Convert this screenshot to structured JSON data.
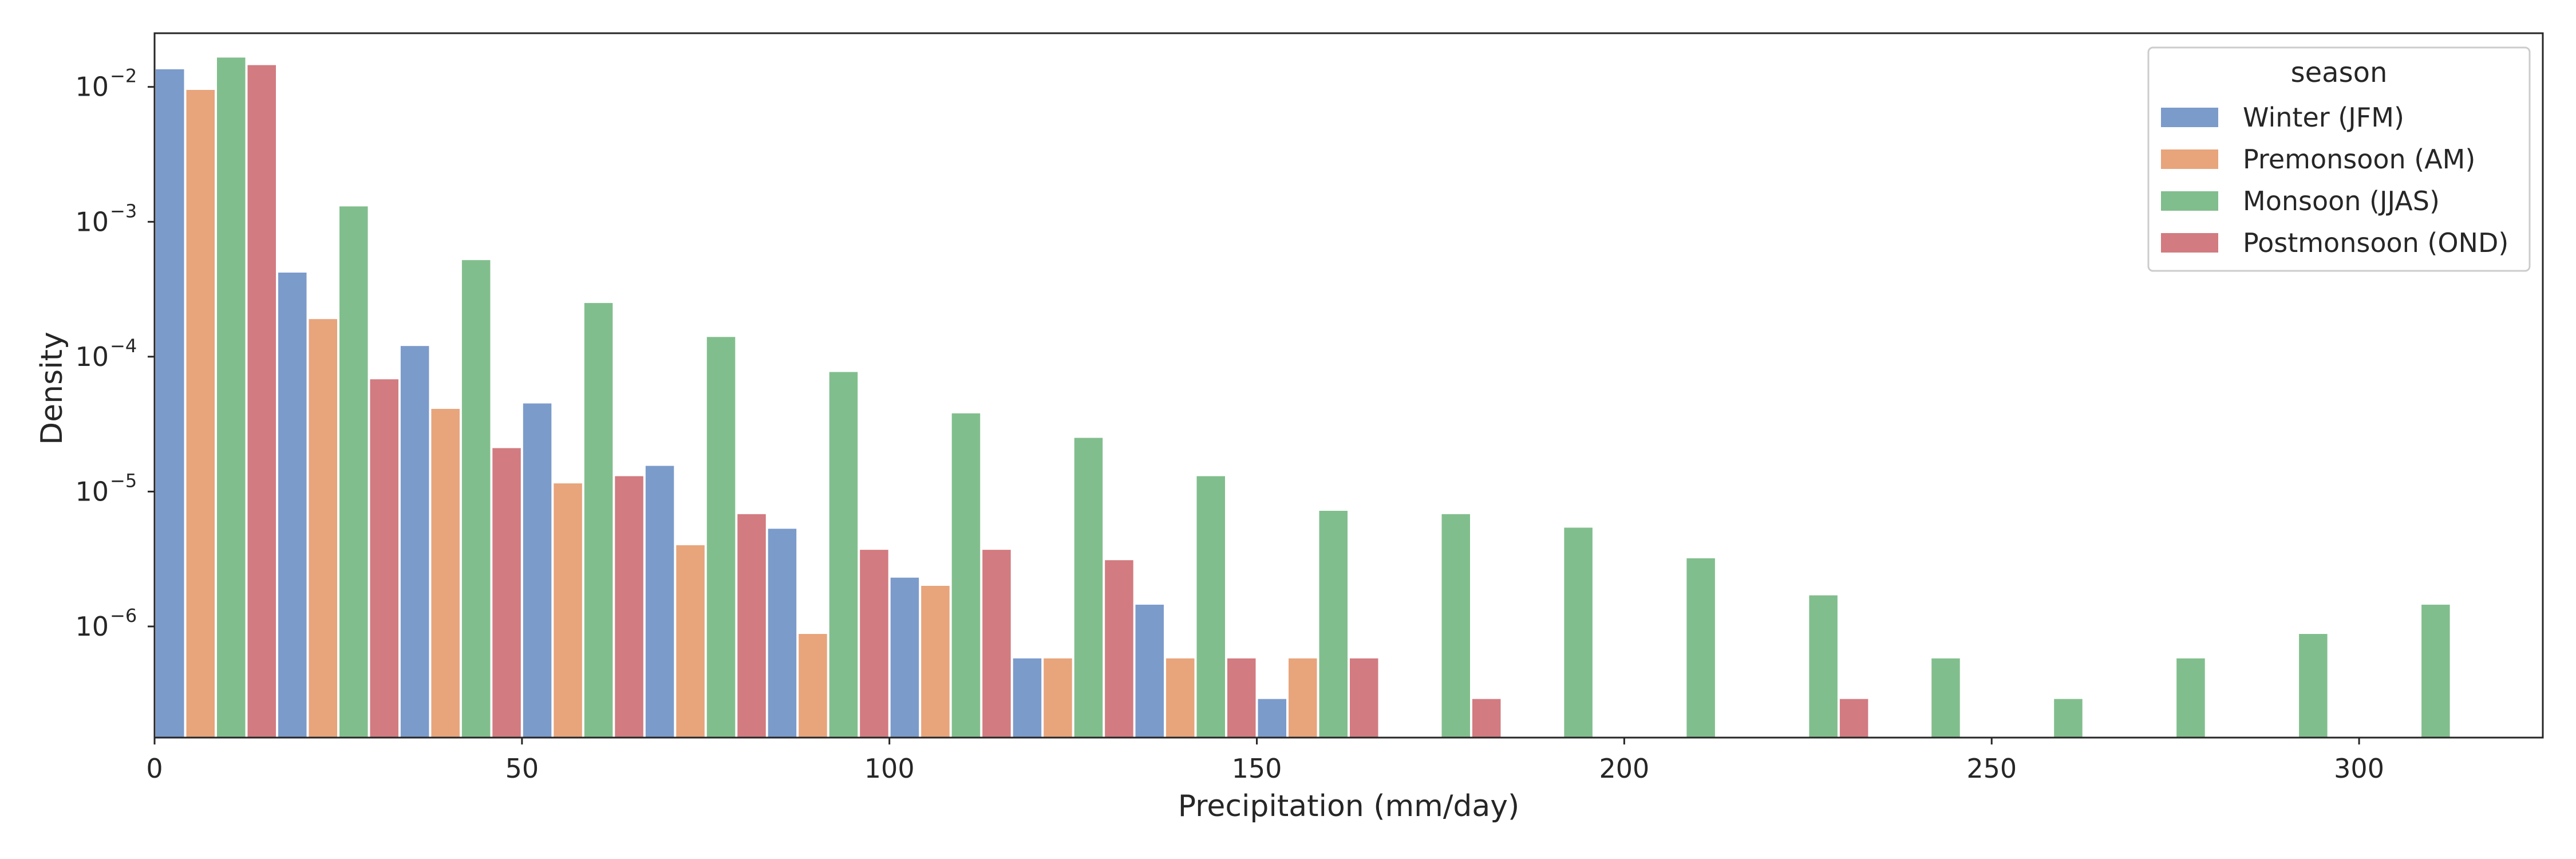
{
  "chart_data": {
    "type": "bar",
    "xlabel": "Precipitation (mm/day)",
    "ylabel": "Density",
    "yscale": "log",
    "xlim": [
      0,
      325
    ],
    "ylim": [
      1.5e-07,
      0.025
    ],
    "x_ticks": [
      0,
      50,
      100,
      150,
      200,
      250,
      300
    ],
    "y_ticks": [
      {
        "value": 1e-06,
        "exp": "−6"
      },
      {
        "value": 1e-05,
        "exp": "−5"
      },
      {
        "value": 0.0001,
        "exp": "−4"
      },
      {
        "value": 0.001,
        "exp": "−3"
      },
      {
        "value": 0.01,
        "exp": "−2"
      }
    ],
    "y_tick_base": "10",
    "bin_width": 16.67,
    "bin_starts": [
      0,
      16.67,
      33.33,
      50,
      66.67,
      83.33,
      100,
      116.67,
      133.33,
      150,
      166.67,
      183.33,
      200,
      216.67,
      233.33,
      250,
      266.67,
      283.33,
      300
    ],
    "legend": {
      "title": "season",
      "position": "top-right"
    },
    "grid": false,
    "series": [
      {
        "name": "Winter (JFM)",
        "color": "#7b9bcb",
        "values": [
          0.0135,
          0.00042,
          0.00012,
          4.5e-05,
          1.55e-05,
          5.3e-06,
          2.3e-06,
          5.8e-07,
          1.45e-06,
          2.9e-07,
          null,
          null,
          null,
          null,
          null,
          null,
          null,
          null,
          null
        ]
      },
      {
        "name": "Premonsoon (AM)",
        "color": "#e8a47b",
        "values": [
          0.0095,
          0.00019,
          4.1e-05,
          1.15e-05,
          4e-06,
          8.8e-07,
          2e-06,
          5.8e-07,
          5.8e-07,
          5.8e-07,
          null,
          null,
          null,
          null,
          null,
          null,
          null,
          null,
          null
        ]
      },
      {
        "name": "Monsoon (JJAS)",
        "color": "#81be8d",
        "values": [
          0.0165,
          0.0013,
          0.00052,
          0.00025,
          0.00014,
          7.7e-05,
          3.8e-05,
          2.5e-05,
          1.3e-05,
          7.2e-06,
          6.8e-06,
          5.4e-06,
          3.2e-06,
          1.7e-06,
          5.8e-07,
          2.9e-07,
          5.8e-07,
          8.8e-07,
          1.45e-06
        ]
      },
      {
        "name": "Postmonsoon (OND)",
        "color": "#d27b80",
        "values": [
          0.0145,
          6.8e-05,
          2.1e-05,
          1.3e-05,
          6.8e-06,
          3.7e-06,
          3.7e-06,
          3.1e-06,
          5.8e-07,
          5.8e-07,
          2.9e-07,
          null,
          null,
          2.9e-07,
          null,
          null,
          null,
          null,
          null
        ]
      }
    ]
  }
}
